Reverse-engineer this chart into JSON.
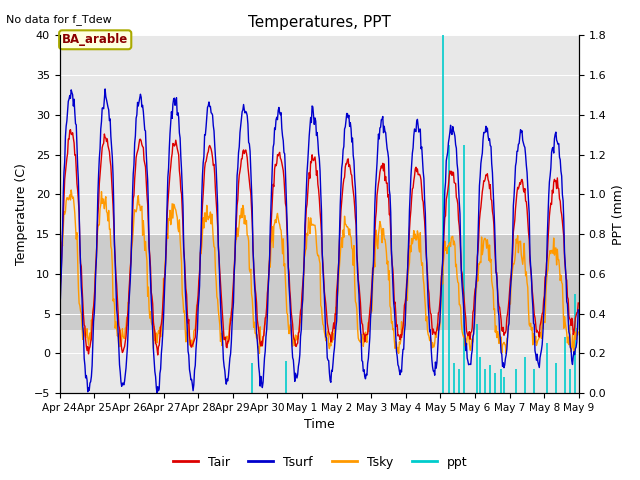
{
  "title": "Temperatures, PPT",
  "top_left_text": "No data for f_Tdew",
  "box_label": "BA_arable",
  "xlabel": "Time",
  "ylabel_left": "Temperature (C)",
  "ylabel_right": "PPT (mm)",
  "ylim_left": [
    -5,
    40
  ],
  "ylim_right": [
    0.0,
    1.8
  ],
  "yticks_left": [
    -5,
    0,
    5,
    10,
    15,
    20,
    25,
    30,
    35,
    40
  ],
  "yticks_right": [
    0.0,
    0.2,
    0.4,
    0.6,
    0.8,
    1.0,
    1.2,
    1.4,
    1.6,
    1.8
  ],
  "xtick_labels": [
    "Apr 24",
    "Apr 25",
    "Apr 26",
    "Apr 27",
    "Apr 28",
    "Apr 29",
    "Apr 30",
    "May 1",
    "May 2",
    "May 3",
    "May 4",
    "May 5",
    "May 6",
    "May 7",
    "May 8",
    "May 9"
  ],
  "colors": {
    "Tair": "#dd0000",
    "Tsurf": "#0000cc",
    "Tsky": "#ff9900",
    "ppt": "#00cccc",
    "bg_plot": "#e8e8e8",
    "bg_band": "#cccccc"
  },
  "band_low": 3,
  "band_high": 15,
  "n_days": 15,
  "pts_per_day": 48,
  "figsize": [
    6.4,
    4.8
  ],
  "dpi": 100
}
